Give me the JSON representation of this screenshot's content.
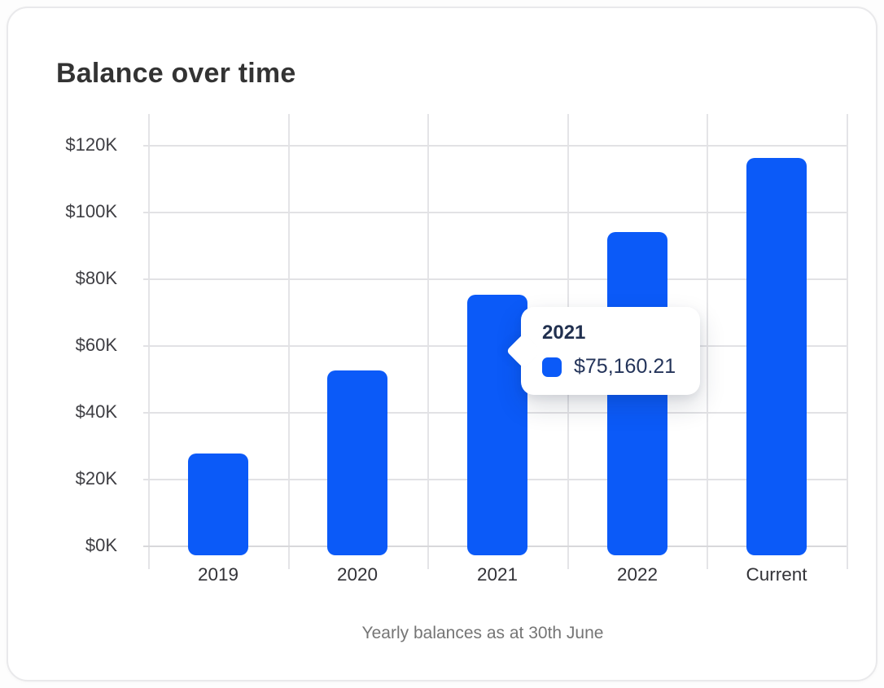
{
  "card": {
    "title": "Balance over time",
    "caption": "Yearly balances as at 30th June"
  },
  "chart_data": {
    "type": "bar",
    "title": "Balance over time",
    "categories": [
      "2019",
      "2020",
      "2021",
      "2022",
      "Current"
    ],
    "values": [
      27500,
      52500,
      75160.21,
      94000,
      116000
    ],
    "y_ticks": [
      "$120K",
      "$100K",
      "$80K",
      "$60K",
      "$40K",
      "$20K",
      "$0K"
    ],
    "y_tick_values": [
      120000,
      100000,
      80000,
      60000,
      40000,
      20000,
      0
    ],
    "ylim": [
      0,
      120000
    ],
    "xlabel": "",
    "ylabel": "",
    "grid": true,
    "legend": "none",
    "bar_color": "#0b5af8",
    "gridline_color": "#e2e2e5",
    "caption": "Yearly balances as at 30th June"
  },
  "tooltip": {
    "label": "2021",
    "value": "$75,160.21",
    "swatch_color": "#0b5af8"
  },
  "colors": {
    "accent_blue": "#0b5af8",
    "title_text": "#333333",
    "axis_text": "#3e3e43",
    "caption_text": "#757575",
    "tooltip_text": "#21304f",
    "card_background": "#ffffff",
    "card_border": "#e9e9eb"
  }
}
